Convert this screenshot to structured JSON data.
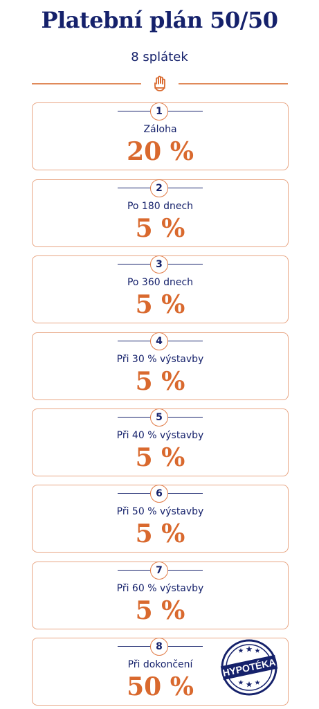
{
  "header": {
    "title": "Platební plán 50/50",
    "subtitle": "8 splátek",
    "logo_icon": "hand-logo-icon"
  },
  "colors": {
    "navy": "#15216b",
    "orange": "#d9692e",
    "border": "#e8a583"
  },
  "installments": [
    {
      "number": "1",
      "label": "Záloha",
      "percent": "20 %"
    },
    {
      "number": "2",
      "label": "Po 180 dnech",
      "percent": "5 %"
    },
    {
      "number": "3",
      "label": "Po 360 dnech",
      "percent": "5 %"
    },
    {
      "number": "4",
      "label": "Při 30 % výstavby",
      "percent": "5 %"
    },
    {
      "number": "5",
      "label": "Při 40 % výstavby",
      "percent": "5 %"
    },
    {
      "number": "6",
      "label": "Při 50 % výstavby",
      "percent": "5 %"
    },
    {
      "number": "7",
      "label": "Při 60 % výstavby",
      "percent": "5 %"
    },
    {
      "number": "8",
      "label": "Při dokončení",
      "percent": "50 %"
    }
  ],
  "stamp": {
    "text": "HYPOTÉKA"
  }
}
